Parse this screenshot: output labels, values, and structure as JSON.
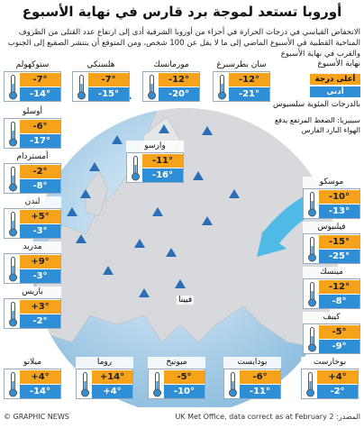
{
  "title": "أوروبا تستعد لموجة برد قارس في نهاية الأسبوع",
  "intro": "الانخفاض القياسي في درجات الحرارة في أجزاء من أوروبا الشرقية أدى إلى ارتفاع عدد القتلى من الظروف المناخية القطبية في الأسبوع الماضي إلى ما لا يقل عن 100 شخص، ومن المتوقع أن ينتشر الصقيع إلى الجنوب والغرب في نهاية الأسبوع",
  "legend": {
    "heading": "نهاية الأسبوع",
    "high": "أعلى درجة",
    "low": "أدنى",
    "unit": "بالدرجات المئوية سلسيوس",
    "note": "سيبيريا: الضغط المرتفع يدفع الهواء البارد القارس"
  },
  "cities": [
    {
      "name": "ستوكهولم",
      "high": "-7°",
      "low": "-14°"
    },
    {
      "name": "هلسنكي",
      "high": "-7°",
      "low": "-15°"
    },
    {
      "name": "مورمانسك",
      "high": "-12°",
      "low": "-20°"
    },
    {
      "name": "سان بطرسبرغ",
      "high": "-12°",
      "low": "-21°"
    },
    {
      "name": "أوسلو",
      "high": "-6°",
      "low": "-17°"
    },
    {
      "name": "أمستردام",
      "high": "-2°",
      "low": "-8°"
    },
    {
      "name": "لندن",
      "high": "+5°",
      "low": "-3°"
    },
    {
      "name": "مدريد",
      "high": "+9°",
      "low": "-3°"
    },
    {
      "name": "باريس",
      "high": "+3°",
      "low": "-2°"
    },
    {
      "name": "ميلانو",
      "high": "+4°",
      "low": "-14°"
    },
    {
      "name": "روما",
      "high": "+14°",
      "low": "+4°"
    },
    {
      "name": "ميونيخ",
      "high": "-5°",
      "low": "-10°"
    },
    {
      "name": "بودابست",
      "high": "-6°",
      "low": "-11°"
    },
    {
      "name": "بوخارست",
      "high": "+4°",
      "low": "-2°"
    },
    {
      "name": "موسكو",
      "high": "-10°",
      "low": "-13°"
    },
    {
      "name": "فيلنيوس",
      "high": "-15°",
      "low": "-25°"
    },
    {
      "name": "مينسك",
      "high": "-12°",
      "low": "-8°"
    },
    {
      "name": "كييف",
      "high": "-5°",
      "low": "-9°"
    },
    {
      "name": "وارسو",
      "high": "-11°",
      "low": "-16°"
    }
  ],
  "map_labels": [
    "فيينا"
  ],
  "footer": {
    "credit": "© GRAPHIC NEWS",
    "source": "المصدر: UK Met Office, data correct as at February 2"
  }
}
